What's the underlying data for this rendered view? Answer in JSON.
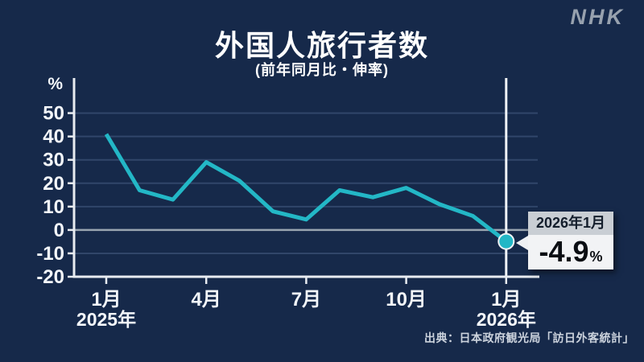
{
  "app": {
    "logo": "NHK"
  },
  "header": {
    "title": "外国人旅行者数",
    "subtitle": "(前年同月比・伸率)"
  },
  "chart_data": {
    "type": "line",
    "title": "外国人旅行者数",
    "subtitle": "(前年同月比・伸率)",
    "unit_label": "%",
    "x": [
      "2025年1月",
      "2025年2月",
      "2025年3月",
      "2025年4月",
      "2025年5月",
      "2025年6月",
      "2025年7月",
      "2025年8月",
      "2025年9月",
      "2025年10月",
      "2025年11月",
      "2025年12月",
      "2026年1月"
    ],
    "values": [
      41,
      17,
      13,
      29,
      21,
      8,
      4.5,
      17,
      14,
      18,
      11,
      6,
      -4.9
    ],
    "ylim": [
      -20,
      65
    ],
    "yticks": [
      50,
      40,
      30,
      20,
      10,
      0,
      -10,
      -20
    ],
    "xticks": [
      {
        "index": 0,
        "label": "1月"
      },
      {
        "index": 3,
        "label": "4月"
      },
      {
        "index": 6,
        "label": "7月"
      },
      {
        "index": 9,
        "label": "10月"
      },
      {
        "index": 12,
        "label": "1月"
      }
    ],
    "year_labels": [
      {
        "index": 0,
        "label": "2025年"
      },
      {
        "index": 12,
        "label": "2026年"
      }
    ],
    "grid": true,
    "legend": null,
    "highlight_index": 12,
    "colors": {
      "background": "#16294a",
      "line": "#23b7c6",
      "grid": "#31466a",
      "zero_line": "#9aa5b1",
      "axis": "#e8ecf1",
      "highlight_line": "#f0f3f6",
      "label_text": "#f3f6fa"
    }
  },
  "callout": {
    "label": "2026年1月",
    "value": "-4.9",
    "unit": "%"
  },
  "source": "出典：日本政府観光局「訪日外客統計」"
}
